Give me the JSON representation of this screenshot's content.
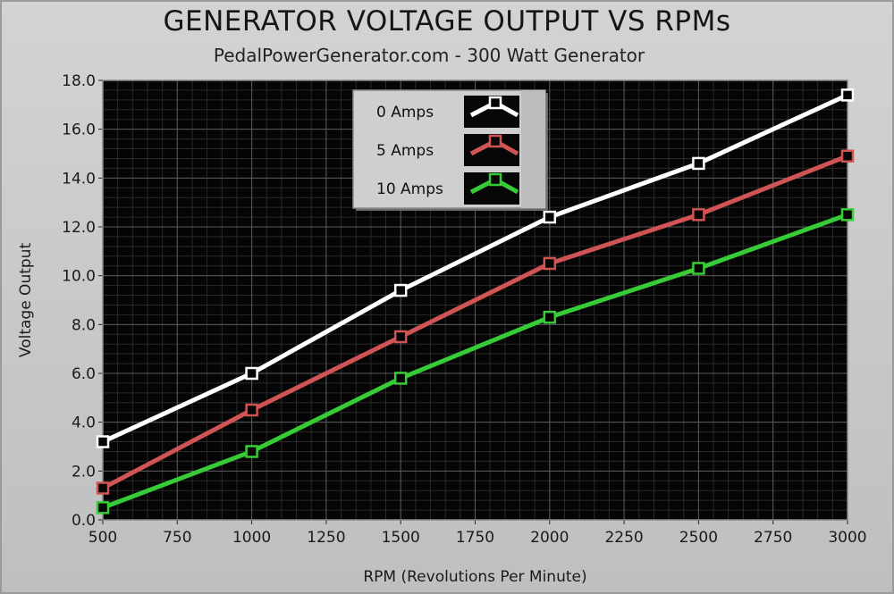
{
  "chart_data": {
    "type": "line",
    "title": "GENERATOR VOLTAGE OUTPUT VS RPMs",
    "subtitle": "PedalPowerGenerator.com  - 300 Watt Generator",
    "xlabel": "RPM (Revolutions Per Minute)",
    "ylabel": "Voltage Output",
    "xlim": [
      500,
      3000
    ],
    "ylim": [
      0,
      18
    ],
    "x_ticks": [
      "500",
      "750",
      "1000",
      "1250",
      "1500",
      "1750",
      "2000",
      "2250",
      "2500",
      "2750",
      "3000"
    ],
    "y_ticks": [
      "0.0",
      "2.0",
      "4.0",
      "6.0",
      "8.0",
      "10.0",
      "12.0",
      "14.0",
      "16.0",
      "18.0"
    ],
    "grid": true,
    "background": "#050505",
    "legend_position": "top-center",
    "series": [
      {
        "name": "0 Amps",
        "color": "#ffffff",
        "x": [
          500,
          1000,
          1500,
          2000,
          2500,
          3000
        ],
        "y": [
          3.2,
          6.0,
          9.4,
          12.4,
          14.6,
          17.4
        ]
      },
      {
        "name": "5 Amps",
        "color": "#d05454",
        "x": [
          500,
          1000,
          1500,
          2000,
          2500,
          3000
        ],
        "y": [
          1.3,
          4.5,
          7.5,
          10.5,
          12.5,
          14.9
        ]
      },
      {
        "name": "10 Amps",
        "color": "#37cc37",
        "x": [
          500,
          1000,
          1500,
          2000,
          2500,
          3000
        ],
        "y": [
          0.5,
          2.8,
          5.8,
          8.3,
          10.3,
          12.5
        ]
      }
    ]
  }
}
